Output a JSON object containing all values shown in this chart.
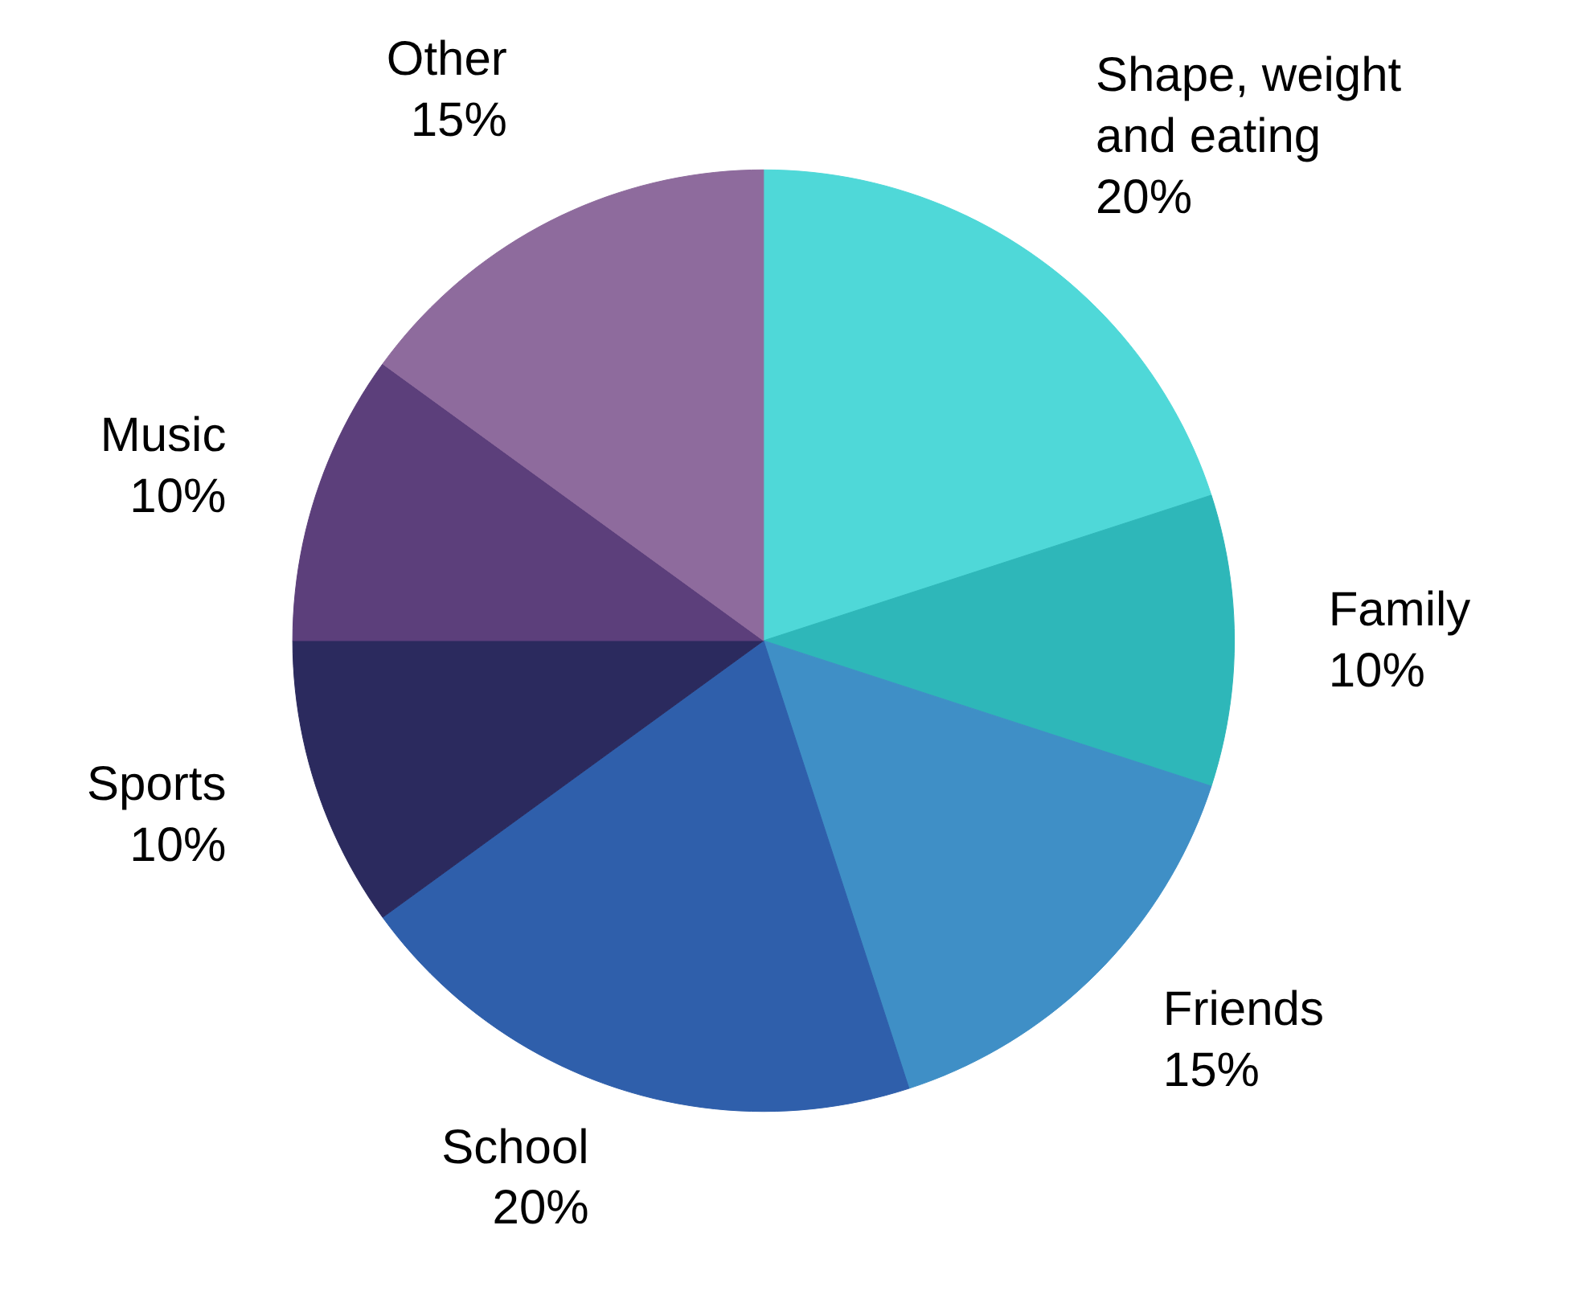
{
  "chart_data": {
    "type": "pie",
    "categories": [
      "Shape, weight and eating",
      "Family",
      "Friends",
      "School",
      "Sports",
      "Music",
      "Other"
    ],
    "values": [
      20,
      10,
      15,
      20,
      10,
      10,
      15
    ],
    "value_labels": [
      "20%",
      "10%",
      "15%",
      "20%",
      "10%",
      "10%",
      "15%"
    ],
    "colors": [
      "#4fd8d8",
      "#2eb7b9",
      "#3f8fc6",
      "#2f5fab",
      "#2b2a5e",
      "#5c3f7b",
      "#8e6b9d"
    ]
  }
}
